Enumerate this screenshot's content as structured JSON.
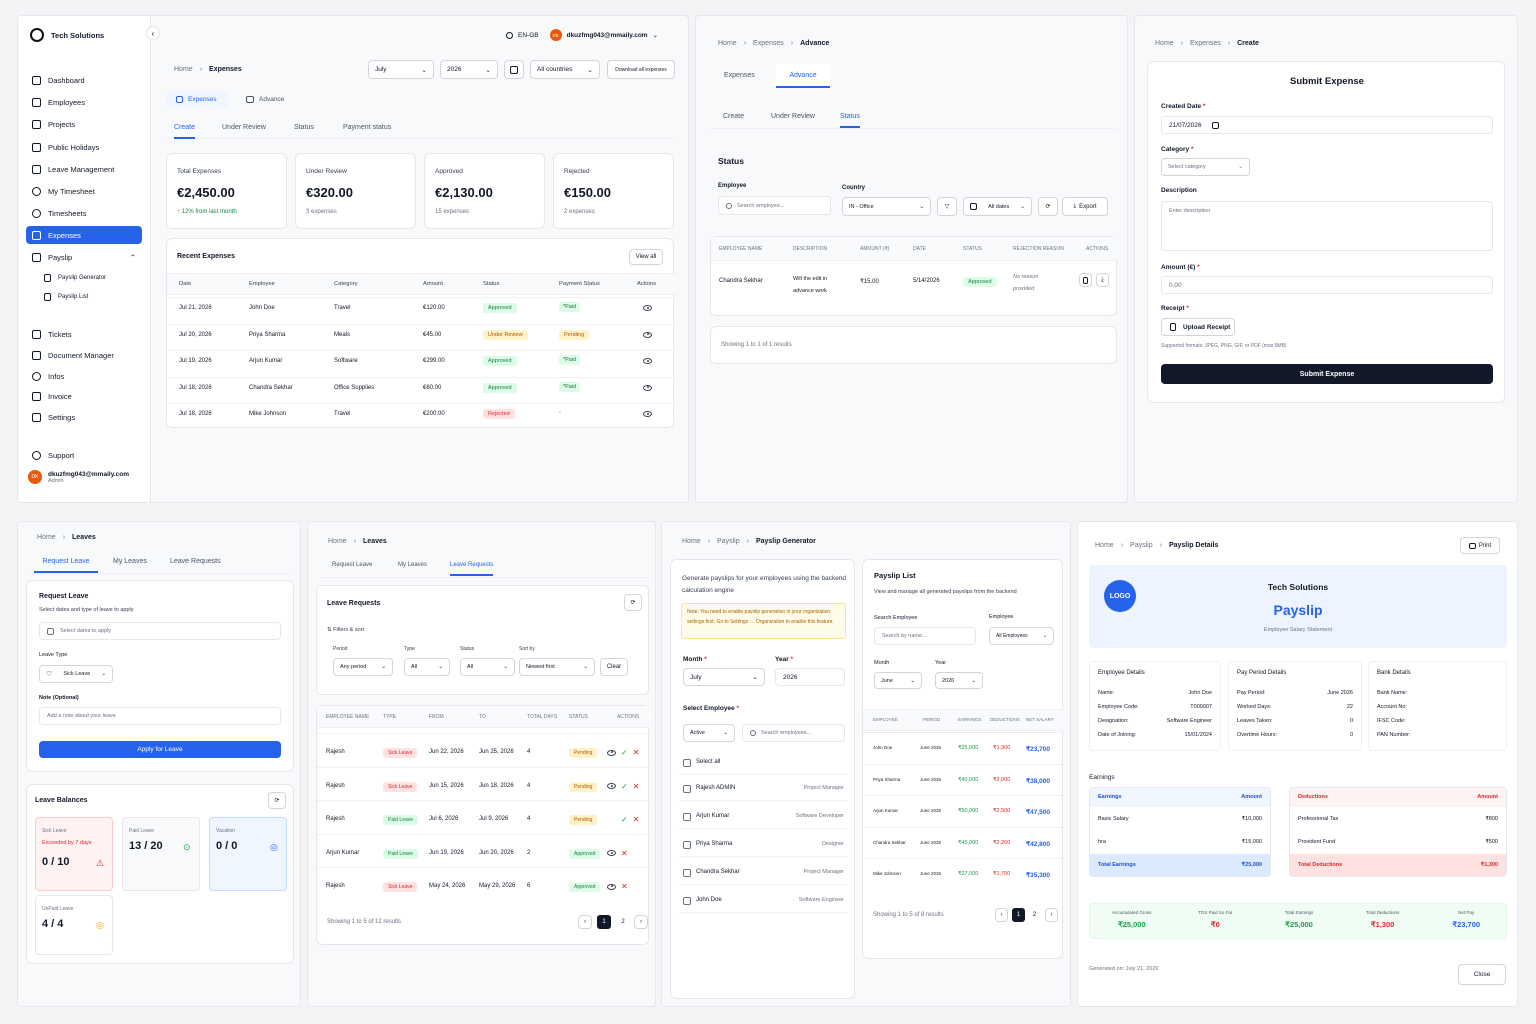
{
  "dash": {
    "brand": "Tech Solutions",
    "lang": "EN-GB",
    "user_initials": "DK",
    "user_email": "dkuzfmg043@mmaily.com",
    "user_role": "Admin",
    "nav": [
      "Dashboard",
      "Employees",
      "Projects",
      "Public Holidays",
      "Leave Management",
      "My Timesheet",
      "Timesheets",
      "Expenses",
      "Payslip",
      "Payslip Generator",
      "Payslip List",
      "Tickets",
      "Document Manager",
      "Infos",
      "Invoice",
      "Settings"
    ],
    "support": "Support",
    "breadcrumb_home": "Home",
    "breadcrumb_current": "Expenses",
    "month": "July",
    "year": "2026",
    "countries": "All countries",
    "download": "Download all expenses",
    "tab_expenses": "Expenses",
    "tab_advance": "Advance",
    "subtabs": [
      "Create",
      "Under Review",
      "Status",
      "Payment status"
    ],
    "stats": [
      {
        "label": "Total Expenses",
        "value": "€2,450.00",
        "sub": "↑ 12% from last month"
      },
      {
        "label": "Under Review",
        "value": "€320.00",
        "sub": "3 expenses"
      },
      {
        "label": "Approved",
        "value": "€2,130.00",
        "sub": "15 expenses"
      },
      {
        "label": "Rejected",
        "value": "€150.00",
        "sub": "2 expenses"
      }
    ],
    "recent_title": "Recent Expenses",
    "view_all": "View all",
    "cols": [
      "Date",
      "Employee",
      "Category",
      "Amount",
      "Status",
      "Payment Status",
      "Actions"
    ],
    "rows": [
      {
        "date": "Jul 21, 2026",
        "emp": "John Doe",
        "cat": "Travel",
        "amt": "€120.00",
        "status": "Approved",
        "pay": "*Paid"
      },
      {
        "date": "Jul 20, 2026",
        "emp": "Priya Sharma",
        "cat": "Meals",
        "amt": "€45.00",
        "status": "Under Review",
        "pay": "Pending"
      },
      {
        "date": "Jul 19, 2026",
        "emp": "Arjun Kumar",
        "cat": "Software",
        "amt": "€299.00",
        "status": "Approved",
        "pay": "*Paid"
      },
      {
        "date": "Jul 18, 2026",
        "emp": "Chandra Sekhar",
        "cat": "Office Supplies",
        "amt": "€60.00",
        "status": "Approved",
        "pay": "*Paid"
      },
      {
        "date": "Jul 18, 2026",
        "emp": "Mike Johnson",
        "cat": "Travel",
        "amt": "€200.00",
        "status": "Rejected",
        "pay": "-"
      }
    ]
  },
  "adv": {
    "bc": [
      "Home",
      "Expenses",
      "Advance"
    ],
    "tabs": [
      "Expenses",
      "Advance"
    ],
    "subtabs": [
      "Create",
      "Under Review",
      "Status"
    ],
    "title": "Status",
    "employee_label": "Employee",
    "search_placeholder": "Search employee...",
    "country_label": "Country",
    "country": "IN - Office",
    "dates": "All dates",
    "export": "Export",
    "cols": [
      "Employee Name",
      "Description",
      "Amount (₹)",
      "Date",
      "Status",
      "Rejection Reason",
      "Actions"
    ],
    "row": {
      "name": "Chandra Sekhar",
      "desc1": "Will the edit in",
      "desc2": "advance work",
      "amt": "₹15.00",
      "date": "5/14/2026",
      "status": "Approved",
      "reason1": "No reason",
      "reason2": "provided"
    },
    "showing": "Showing 1 to 1 of 1 results"
  },
  "submit": {
    "bc": [
      "Home",
      "Expenses",
      "Create"
    ],
    "title": "Submit Expense",
    "created_label": "Created Date",
    "created": "21/07/2026",
    "category_label": "Category",
    "category": "Select category",
    "desc_label": "Description",
    "desc_ph": "Enter description",
    "amount_label": "Amount (€)",
    "amount": "0.00",
    "receipt_label": "Receipt",
    "upload": "Upload Receipt",
    "formats": "Supported formats: JPEG, PNG, GIF, or PDF (max 5MB)",
    "button": "Submit Expense"
  },
  "leave": {
    "bc": [
      "Home",
      "Leaves"
    ],
    "tabs": [
      "Request Leave",
      "My Leaves",
      "Leave Requests"
    ],
    "req_title": "Request Leave",
    "req_sub": "Select dates and type of leave to apply",
    "dates_ph": "Select dates to apply",
    "type_label": "Leave Type",
    "type": "Sick Leave",
    "note_label": "Note (Optional)",
    "note_ph": "Add a note about your leave",
    "apply": "Apply for Leave",
    "bal_title": "Leave Balances",
    "balances": [
      {
        "label": "Sick Leave",
        "warn": "Exceeded by 7 days",
        "value": "0 / 10"
      },
      {
        "label": "Paid Leave",
        "value": "13 / 20"
      },
      {
        "label": "Vacation",
        "value": "0 / 0"
      },
      {
        "label": "UnPaid Leave",
        "value": "4 / 4"
      }
    ]
  },
  "lreq": {
    "bc": [
      "Home",
      "Leaves"
    ],
    "tabs": [
      "Request Leave",
      "My Leaves",
      "Leave Requests"
    ],
    "title": "Leave Requests",
    "filters": "Filters & sort",
    "period_label": "Period",
    "period": "Any period",
    "type_label": "Type",
    "type": "All",
    "status_label": "Status",
    "status": "All",
    "sort_label": "Sort by",
    "sort": "Newest first",
    "clear": "Clear",
    "cols": [
      "Employee Name",
      "Type",
      "From",
      "To",
      "Total Days",
      "Status",
      "Actions"
    ],
    "rows": [
      {
        "name": "Rajesh",
        "type": "Sick Leave",
        "from": "Jun 22, 2026",
        "to": "Jun 25, 2026",
        "days": "4",
        "status": "Pending"
      },
      {
        "name": "Rajesh",
        "type": "Sick Leave",
        "from": "Jun 15, 2026",
        "to": "Jun 18, 2026",
        "days": "4",
        "status": "Pending"
      },
      {
        "name": "Rajesh",
        "type": "Paid Leave",
        "from": "Jul 6, 2026",
        "to": "Jul 9, 2026",
        "days": "4",
        "status": "Pending"
      },
      {
        "name": "Arjun Kumar",
        "type": "Paid Leave",
        "from": "Jun 19, 2026",
        "to": "Jun 20, 2026",
        "days": "2",
        "status": "Approved"
      },
      {
        "name": "Rajesh",
        "type": "Sick Leave",
        "from": "May 24, 2026",
        "to": "May 29, 2026",
        "days": "6",
        "status": "Approved"
      }
    ],
    "showing": "Showing 1 to 5 of 12 results",
    "pages": [
      "1",
      "2"
    ]
  },
  "pgen": {
    "bc": [
      "Home",
      "Payslip",
      "Payslip Generator"
    ],
    "intro": "Generate payslips for your employees using the backend calculation engine",
    "note": "Note: You need to enable payslip generation in your organization settings first. Go to Settings → Organization to enable this feature.",
    "month_label": "Month",
    "month": "July",
    "year_label": "Year",
    "year": "2026",
    "select_label": "Select Employee",
    "active": "Active",
    "search_ph": "Search employees...",
    "select_all": "Select all",
    "employees": [
      {
        "name": "Rajesh ADMIN",
        "role": "Project Manager"
      },
      {
        "name": "Arjun Kumar",
        "role": "Software Developer"
      },
      {
        "name": "Priya Sharma",
        "role": "Designer"
      },
      {
        "name": "Chandra Sekhar",
        "role": "Project Manager"
      },
      {
        "name": "John Doe",
        "role": "Software Engineer"
      }
    ],
    "list_title": "Payslip List",
    "list_sub": "View and manage all generated payslips from the backend",
    "search_emp_label": "Search Employee",
    "search_emp_ph": "Search by name...",
    "emp_label": "Employee",
    "emp": "All Employees",
    "lmonth_label": "Month",
    "lmonth": "June",
    "lyear_label": "Year",
    "lyear": "2026",
    "cols": [
      "Employee",
      "Period",
      "Earnings",
      "Deductions",
      "Net Salary"
    ],
    "rows": [
      {
        "name": "John Doe",
        "period": "June 2026",
        "earn": "₹25,000",
        "ded": "₹1,300",
        "net": "₹23,700"
      },
      {
        "name": "Priya Sharma",
        "period": "June 2026",
        "earn": "₹40,000",
        "ded": "₹2,000",
        "net": "₹38,000"
      },
      {
        "name": "Arjun Kumar",
        "period": "June 2026",
        "earn": "₹50,000",
        "ded": "₹2,500",
        "net": "₹47,500"
      },
      {
        "name": "Chandra Sekhar",
        "period": "June 2026",
        "earn": "₹45,000",
        "ded": "₹2,200",
        "net": "₹42,800"
      },
      {
        "name": "Mike Johnson",
        "period": "June 2026",
        "earn": "₹37,000",
        "ded": "₹1,700",
        "net": "₹35,300"
      }
    ],
    "showing": "Showing 1 to 5 of 8 results",
    "pages": [
      "1",
      "2"
    ]
  },
  "pdet": {
    "bc": [
      "Home",
      "Payslip",
      "Payslip Details"
    ],
    "print": "Print",
    "logo": "LOGO",
    "company": "Tech Solutions",
    "title": "Payslip",
    "subtitle": "Employee Salary Statement",
    "emp_title": "Employee Details",
    "emp": [
      [
        "Name:",
        "John Doe"
      ],
      [
        "Employee Code:",
        "T000007"
      ],
      [
        "Designation:",
        "Software Engineer"
      ],
      [
        "Date of Joining:",
        "15/01/2024"
      ]
    ],
    "pay_title": "Pay Period Details",
    "pay": [
      [
        "Pay Period:",
        "June 2026"
      ],
      [
        "Worked Days:",
        "22"
      ],
      [
        "Leaves Taken:",
        "0"
      ],
      [
        "Overtime Hours:",
        "0"
      ]
    ],
    "bank_title": "Bank Details",
    "bank": [
      "Bank Name:",
      "Account No:",
      "IFSC Code:",
      "PAN Number:"
    ],
    "earnings_title": "Earnings",
    "earn_head": [
      "Earnings",
      "Amount"
    ],
    "earn": [
      [
        "Basic Salary",
        "₹10,000"
      ],
      [
        "hra",
        "₹15,000"
      ]
    ],
    "earn_total": [
      "Total Earnings",
      "₹25,000"
    ],
    "ded_head": [
      "Deductions",
      "Amount"
    ],
    "ded": [
      [
        "Professional Tax",
        "₹800"
      ],
      [
        "Provident Fund",
        "₹500"
      ]
    ],
    "ded_total": [
      "Total Deductions",
      "₹1,300"
    ],
    "summary": [
      {
        "label": "Accumulated Gross",
        "value": "₹25,000"
      },
      {
        "label": "TDS Paid So Far",
        "value": "₹0"
      },
      {
        "label": "Total Earnings",
        "value": "₹25,000"
      },
      {
        "label": "Total Deductions",
        "value": "₹1,300"
      },
      {
        "label": "Net Pay",
        "value": "₹23,700"
      }
    ],
    "generated": "Generated on: July 21, 2026",
    "close": "Close"
  }
}
